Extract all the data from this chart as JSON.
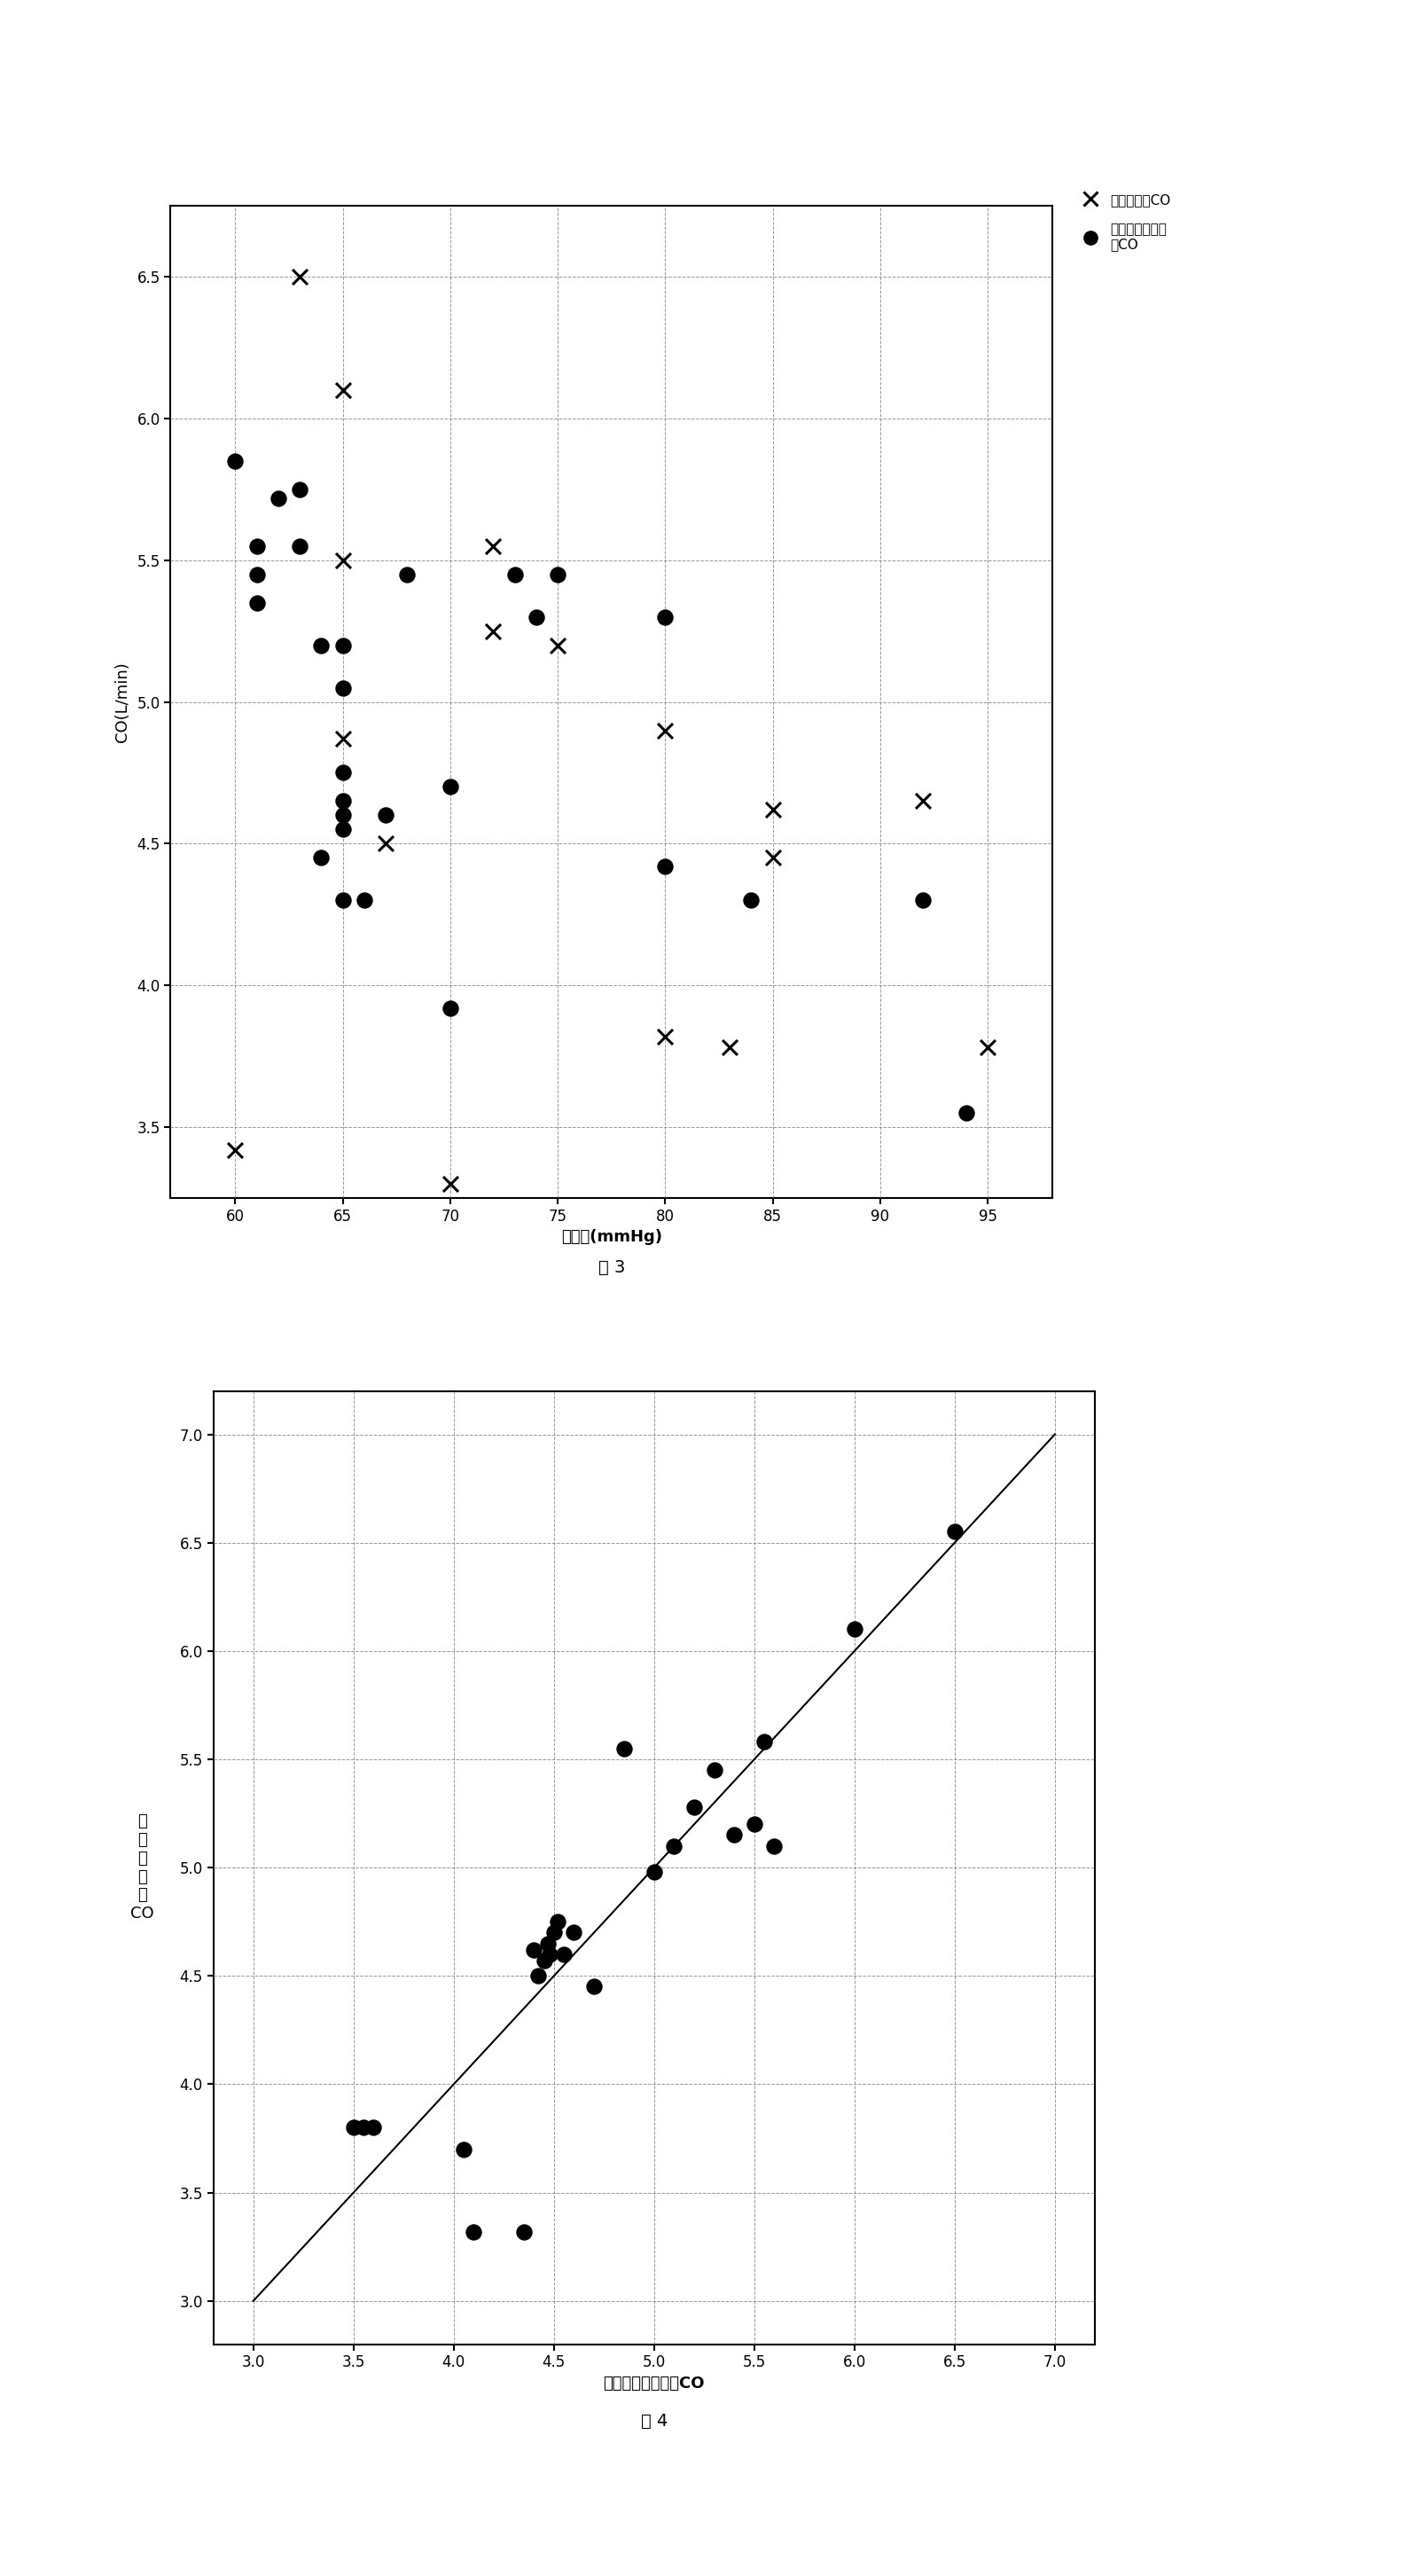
{
  "fig3": {
    "title": "图 3",
    "xlabel": "脉压差(mmHg)",
    "ylabel": "CO(L/min)",
    "xlim": [
      57,
      98
    ],
    "ylim": [
      3.25,
      6.75
    ],
    "xticks": [
      60,
      65,
      70,
      75,
      80,
      85,
      90,
      95
    ],
    "yticks": [
      3.5,
      4.0,
      4.5,
      5.0,
      5.5,
      6.0,
      6.5
    ],
    "cross_x": [
      60,
      63,
      65,
      65,
      65,
      67,
      70,
      72,
      72,
      75,
      80,
      80,
      83,
      85,
      85,
      92,
      95
    ],
    "cross_y": [
      3.42,
      6.5,
      6.1,
      5.5,
      4.87,
      4.5,
      3.3,
      5.55,
      5.25,
      5.2,
      4.9,
      3.82,
      3.78,
      4.62,
      4.45,
      4.65,
      3.78
    ],
    "dot_x": [
      60,
      61,
      61,
      61,
      62,
      63,
      63,
      64,
      64,
      65,
      65,
      65,
      65,
      65,
      65,
      65,
      66,
      67,
      68,
      70,
      70,
      73,
      74,
      75,
      80,
      80,
      84,
      92,
      94
    ],
    "dot_y": [
      5.85,
      5.55,
      5.45,
      5.35,
      5.72,
      5.75,
      5.55,
      5.2,
      4.45,
      5.2,
      5.05,
      4.75,
      4.65,
      4.6,
      4.55,
      4.3,
      4.3,
      4.6,
      5.45,
      4.7,
      3.92,
      5.45,
      5.3,
      5.45,
      5.3,
      4.42,
      4.3,
      4.3,
      3.55
    ],
    "legend_cross": "超声检测的CO",
    "legend_dot_line1": "本发明装置检测",
    "legend_dot_line2": "的CO"
  },
  "fig4": {
    "title": "图 4",
    "xlabel": "本发明装置检测的CO",
    "ylabel_chars": [
      "超",
      "声",
      "检",
      "测",
      "的",
      "CO"
    ],
    "xlim": [
      2.8,
      7.2
    ],
    "ylim": [
      2.8,
      7.2
    ],
    "xticks": [
      3.0,
      3.5,
      4.0,
      4.5,
      5.0,
      5.5,
      6.0,
      6.5,
      7.0
    ],
    "yticks": [
      3.0,
      3.5,
      4.0,
      4.5,
      5.0,
      5.5,
      6.0,
      6.5,
      7.0
    ],
    "dot_x": [
      3.5,
      3.55,
      3.6,
      4.05,
      4.1,
      4.35,
      4.4,
      4.42,
      4.45,
      4.47,
      4.48,
      4.5,
      4.52,
      4.55,
      4.6,
      4.7,
      4.85,
      5.0,
      5.1,
      5.2,
      5.3,
      5.4,
      5.5,
      5.55,
      5.6,
      6.0,
      6.5
    ],
    "dot_y": [
      3.8,
      3.8,
      3.8,
      3.7,
      3.32,
      3.32,
      4.62,
      4.5,
      4.57,
      4.65,
      4.6,
      4.7,
      4.75,
      4.6,
      4.7,
      4.45,
      5.55,
      4.98,
      5.1,
      5.28,
      5.45,
      5.15,
      5.2,
      5.58,
      5.1,
      6.1,
      6.55
    ],
    "line_x": [
      3.0,
      7.0
    ],
    "line_y": [
      3.0,
      7.0
    ]
  }
}
